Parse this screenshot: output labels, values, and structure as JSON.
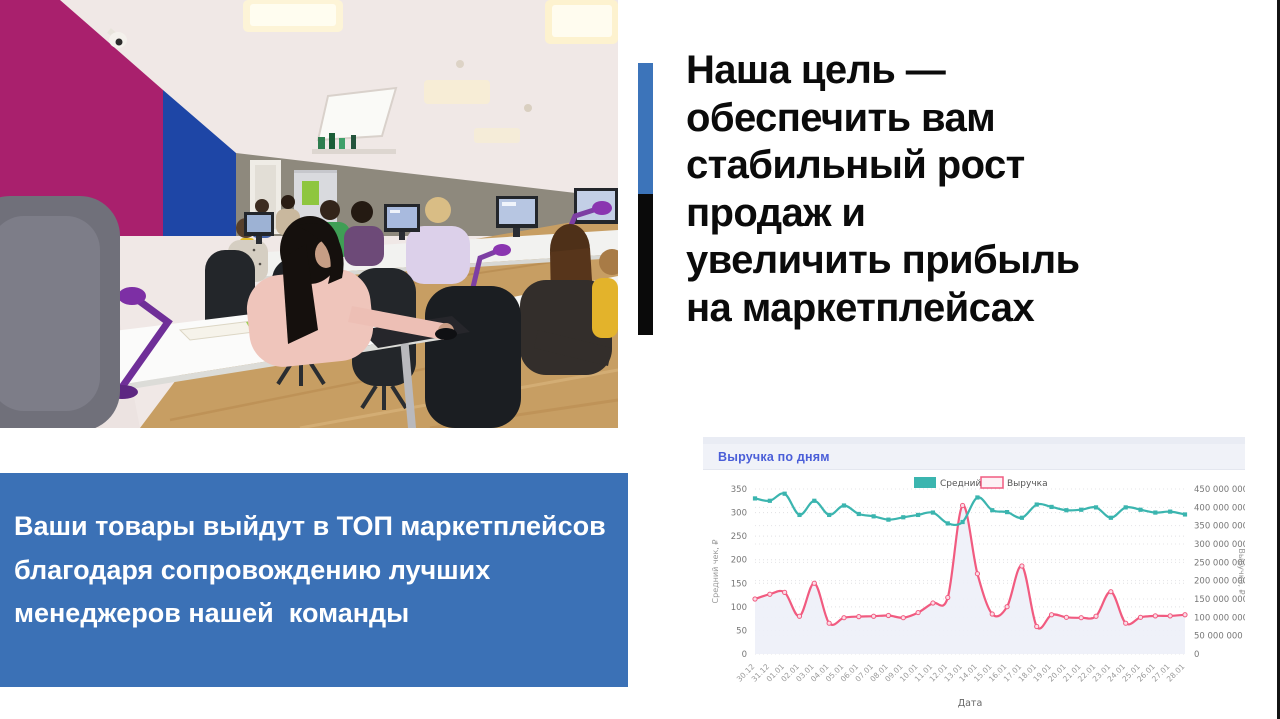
{
  "slide": {
    "headline_lines": [
      "Наша цель —",
      "обеспечить вам",
      "стабильный рост",
      "продаж и",
      "увеличить прибыль",
      "на маркетплейсах"
    ],
    "accent": {
      "blue": "#3c74ba",
      "black": "#0a0a0a"
    },
    "info_box": {
      "bg": "#3b71b6",
      "text_color": "#ffffff",
      "lines": [
        "Ваши товары выйдут в ТОП маркетплейсов",
        "благодаря сопровождению лучших",
        "менеджеров нашей  команды"
      ]
    },
    "photo": {
      "label": "office-team-photo",
      "palette": {
        "magenta_wall": "#a9206d",
        "blue_wall": "#1e46a6",
        "ceiling": "#ece3e1",
        "far_wall": "#8e897d",
        "floor": "#c79e63",
        "desk": "#fafafa",
        "lamp_purple": "#7d3fa3"
      }
    },
    "frame_edge_color": "#141414"
  },
  "chart_data": {
    "type": "line",
    "title": "Выручка по дням",
    "title_color": "#4a5ed8",
    "header_bg": "#f0f2f8",
    "strip_bg": "#e9ecf4",
    "xlabel": "Дата",
    "grid": "dotted-horizontal",
    "legend_position": "top-center",
    "categories": [
      "30.12",
      "31.12",
      "01.01",
      "02.01",
      "03.01",
      "04.01",
      "05.01",
      "06.01",
      "07.01",
      "08.01",
      "09.01",
      "10.01",
      "11.01",
      "12.01",
      "13.01",
      "14.01",
      "15.01",
      "16.01",
      "17.01",
      "18.01",
      "19.01",
      "20.01",
      "21.01",
      "22.01",
      "23.01",
      "24.01",
      "25.01",
      "26.01",
      "27.01",
      "28.01"
    ],
    "series": [
      {
        "name": "Средний чек",
        "axis": "left",
        "color": "#3bb5af",
        "marker": "square",
        "values": [
          330,
          325,
          340,
          295,
          325,
          295,
          315,
          297,
          292,
          285,
          290,
          295,
          300,
          277,
          280,
          332,
          305,
          301,
          289,
          317,
          312,
          305,
          306,
          311,
          289,
          311,
          306,
          300,
          302,
          296
        ]
      },
      {
        "name": "Выручка",
        "axis": "right",
        "color": "#f15b80",
        "marker": "circle",
        "marker_fill": "#fbdde7",
        "area_fill": "#eef0f8",
        "values": [
          150000000,
          163000000,
          168000000,
          103000000,
          193000000,
          84000000,
          99000000,
          102000000,
          103000000,
          105000000,
          99000000,
          113000000,
          139000000,
          154000000,
          405000000,
          219000000,
          109000000,
          129000000,
          240000000,
          75000000,
          107000000,
          100000000,
          99000000,
          103000000,
          170000000,
          84000000,
          100000000,
          104000000,
          104000000,
          107000000
        ]
      }
    ],
    "left_axis": {
      "label": "Средний чек, ₽",
      "min": 0,
      "max": 350,
      "step": 50
    },
    "right_axis": {
      "label": "Выручка, ₽",
      "min": 0,
      "max": 450000000,
      "step": 50000000
    }
  }
}
